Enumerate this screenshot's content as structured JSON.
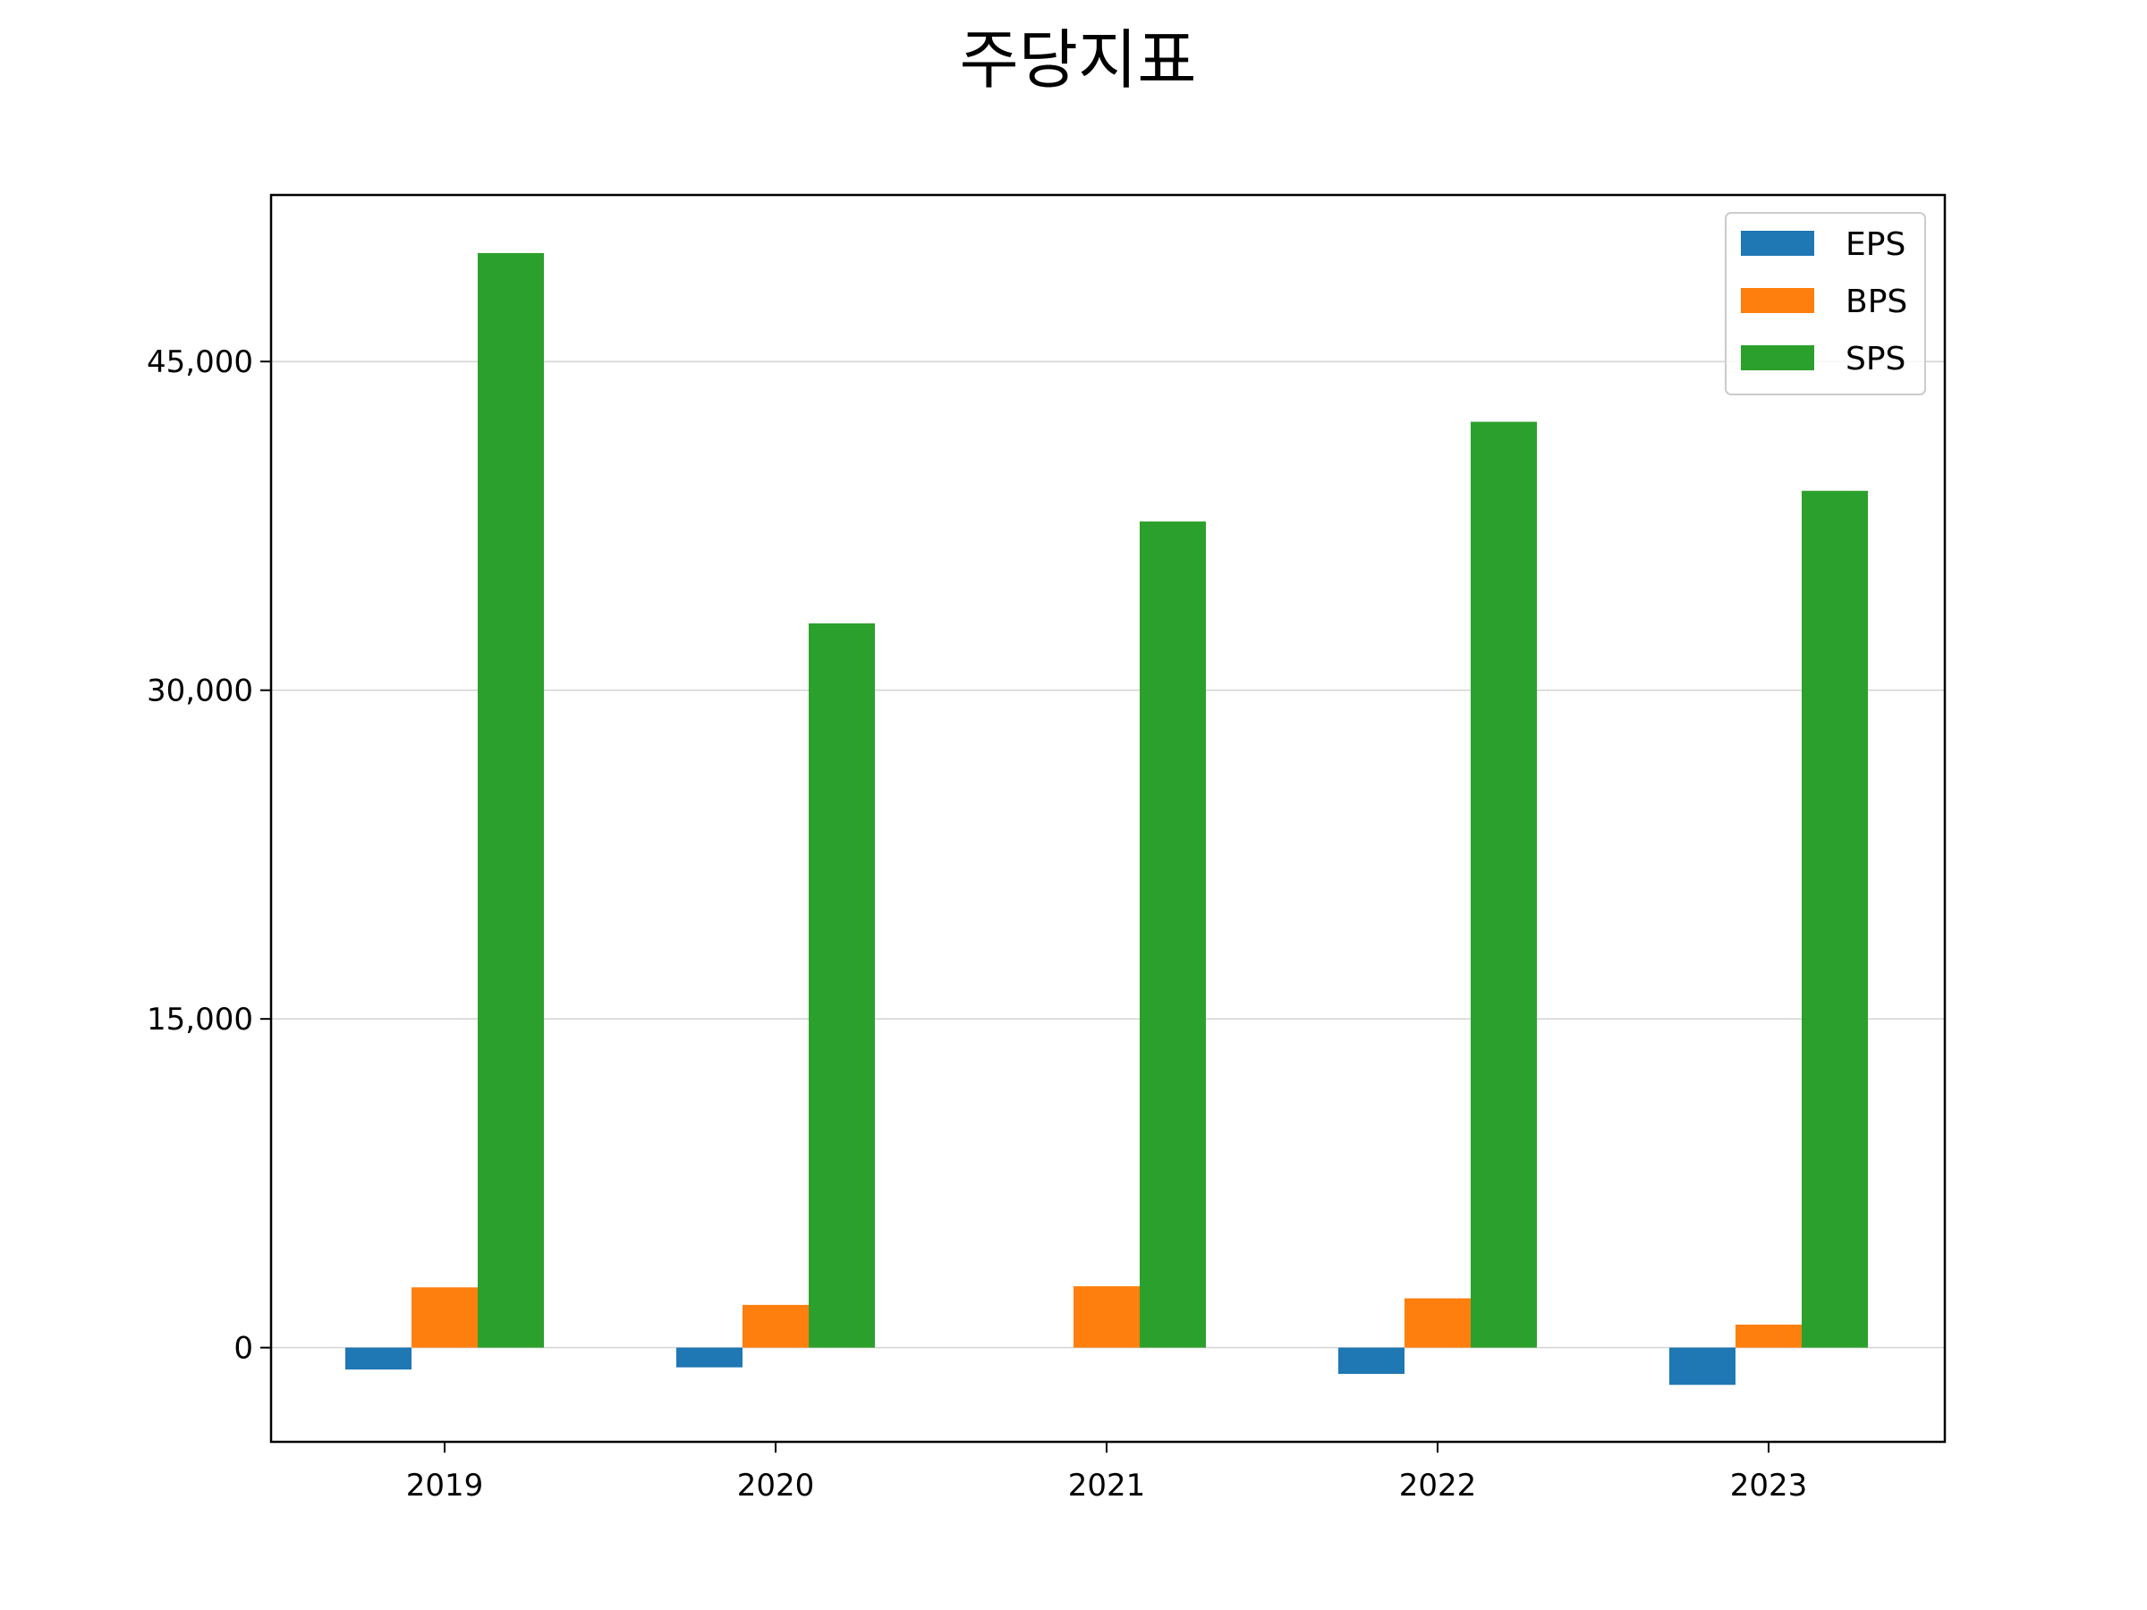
{
  "chart_data": {
    "type": "bar",
    "title": "주당지표",
    "xlabel": "",
    "ylabel": "",
    "categories": [
      "2019",
      "2020",
      "2021",
      "2022",
      "2023"
    ],
    "series": [
      {
        "name": "EPS",
        "color": "#1f77b4",
        "values": [
          -1000,
          -900,
          0,
          -1200,
          -1700
        ]
      },
      {
        "name": "BPS",
        "color": "#ff7f0e",
        "values": [
          2750,
          1950,
          2800,
          2250,
          1050
        ]
      },
      {
        "name": "SPS",
        "color": "#2ca02c",
        "values": [
          49950,
          33050,
          37700,
          42250,
          39100
        ]
      }
    ],
    "yticks": [
      0,
      15000,
      30000,
      45000
    ],
    "ytick_labels": [
      "0",
      "15,000",
      "30,000",
      "45,000"
    ],
    "ylim": [
      -4300,
      52600
    ],
    "grid": "y",
    "legend_position": "top-right"
  }
}
